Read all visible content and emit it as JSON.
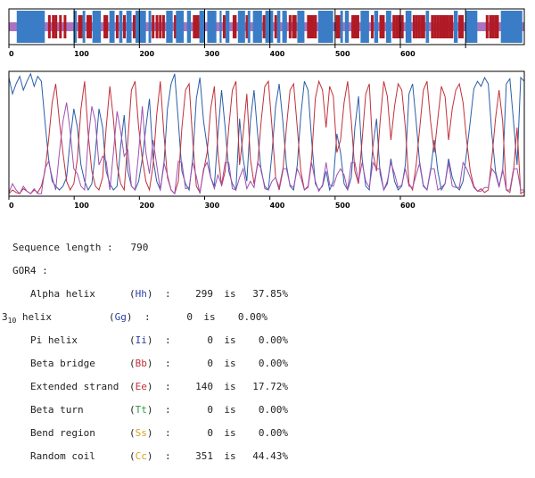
{
  "chart_data": [
    {
      "type": "bar",
      "title": "",
      "x_ticks": [
        0,
        100,
        200,
        300,
        400,
        500,
        600
      ],
      "xlim": [
        0,
        790
      ],
      "colors": {
        "helix": "#3a7dc6",
        "strand": "#b01a24",
        "coil": "#9b59b6",
        "turn": "#2e9a3a"
      },
      "helix_segments": [
        [
          12,
          55
        ],
        [
          99,
          104
        ],
        [
          113,
          117
        ],
        [
          128,
          141
        ],
        [
          154,
          162
        ],
        [
          169,
          174
        ],
        [
          180,
          188
        ],
        [
          194,
          210
        ],
        [
          214,
          218
        ],
        [
          241,
          251
        ],
        [
          256,
          268
        ],
        [
          273,
          279
        ],
        [
          292,
          300
        ],
        [
          304,
          318
        ],
        [
          323,
          326
        ],
        [
          332,
          338
        ],
        [
          351,
          362
        ],
        [
          366,
          370
        ],
        [
          374,
          388
        ],
        [
          393,
          405
        ],
        [
          411,
          416
        ],
        [
          419,
          426
        ],
        [
          442,
          453
        ],
        [
          474,
          497
        ],
        [
          508,
          512
        ],
        [
          515,
          521
        ],
        [
          539,
          552
        ],
        [
          560,
          566
        ],
        [
          578,
          586
        ],
        [
          608,
          617
        ],
        [
          639,
          644
        ],
        [
          682,
          688
        ],
        [
          700,
          718
        ],
        [
          754,
          787
        ]
      ],
      "strand_positions": [
        32,
        62,
        68,
        72,
        79,
        86,
        108,
        111,
        121,
        125,
        147,
        150,
        166,
        177,
        192,
        221,
        227,
        232,
        237,
        255,
        284,
        287,
        290,
        330,
        345,
        347,
        365,
        391,
        409,
        424,
        431,
        436,
        439,
        459,
        462,
        466,
        470,
        503,
        506,
        527,
        531,
        535,
        557,
        570,
        574,
        590,
        594,
        598,
        603,
        621,
        625,
        629,
        633,
        636,
        649,
        653,
        657,
        661,
        665,
        669,
        673,
        677,
        679,
        691,
        695,
        733,
        738,
        742,
        746,
        749
      ]
    },
    {
      "type": "line",
      "title": "",
      "x_ticks": [
        0,
        100,
        200,
        300,
        400,
        500,
        600
      ],
      "xlim": [
        0,
        790
      ],
      "ylim": [
        0,
        1
      ],
      "colors": {
        "helix": "#2a5ea8",
        "strand": "#c0303a",
        "coil": "#a050b0"
      },
      "series": [
        {
          "key": "helix",
          "values": [
            0.95,
            0.82,
            0.9,
            0.96,
            0.85,
            0.92,
            0.98,
            0.88,
            0.96,
            0.92,
            0.6,
            0.3,
            0.12,
            0.08,
            0.05,
            0.08,
            0.15,
            0.45,
            0.7,
            0.55,
            0.25,
            0.12,
            0.05,
            0.1,
            0.35,
            0.7,
            0.55,
            0.2,
            0.1,
            0.05,
            0.08,
            0.4,
            0.65,
            0.2,
            0.08,
            0.05,
            0.12,
            0.3,
            0.55,
            0.78,
            0.3,
            0.12,
            0.05,
            0.25,
            0.7,
            0.9,
            0.98,
            0.6,
            0.2,
            0.1,
            0.05,
            0.3,
            0.78,
            0.95,
            0.6,
            0.4,
            0.15,
            0.08,
            0.5,
            0.85,
            0.55,
            0.2,
            0.1,
            0.05,
            0.62,
            0.3,
            0.12,
            0.6,
            0.85,
            0.5,
            0.2,
            0.08,
            0.05,
            0.35,
            0.72,
            0.9,
            0.6,
            0.25,
            0.08,
            0.05,
            0.25,
            0.65,
            0.92,
            0.85,
            0.45,
            0.1,
            0.05,
            0.08,
            0.2,
            0.05,
            0.12,
            0.5,
            0.35,
            0.1,
            0.05,
            0.15,
            0.55,
            0.8,
            0.3,
            0.08,
            0.05,
            0.4,
            0.62,
            0.18,
            0.05,
            0.1,
            0.3,
            0.12,
            0.05,
            0.08,
            0.25,
            0.82,
            0.9,
            0.6,
            0.25,
            0.08,
            0.05,
            0.2,
            0.45,
            0.2,
            0.05,
            0.1,
            0.3,
            0.15,
            0.08,
            0.05,
            0.12,
            0.35,
            0.6,
            0.86,
            0.92,
            0.88,
            0.95,
            0.9,
            0.5,
            0.2,
            0.08,
            0.2,
            0.9,
            0.94,
            0.6,
            0.25,
            0.95,
            0.92
          ]
        },
        {
          "key": "strand",
          "values": [
            0.02,
            0.05,
            0.03,
            0.02,
            0.06,
            0.04,
            0.02,
            0.05,
            0.03,
            0.08,
            0.2,
            0.45,
            0.75,
            0.9,
            0.6,
            0.35,
            0.12,
            0.05,
            0.1,
            0.3,
            0.7,
            0.92,
            0.5,
            0.2,
            0.08,
            0.05,
            0.15,
            0.55,
            0.88,
            0.62,
            0.25,
            0.1,
            0.05,
            0.45,
            0.85,
            0.92,
            0.55,
            0.3,
            0.12,
            0.05,
            0.25,
            0.65,
            0.92,
            0.5,
            0.15,
            0.05,
            0.02,
            0.12,
            0.55,
            0.85,
            0.9,
            0.45,
            0.08,
            0.03,
            0.2,
            0.35,
            0.7,
            0.88,
            0.35,
            0.08,
            0.2,
            0.55,
            0.85,
            0.92,
            0.25,
            0.5,
            0.82,
            0.3,
            0.1,
            0.25,
            0.6,
            0.88,
            0.92,
            0.55,
            0.15,
            0.05,
            0.2,
            0.55,
            0.85,
            0.9,
            0.55,
            0.2,
            0.05,
            0.08,
            0.3,
            0.78,
            0.92,
            0.85,
            0.55,
            0.88,
            0.8,
            0.35,
            0.45,
            0.75,
            0.92,
            0.6,
            0.2,
            0.1,
            0.45,
            0.82,
            0.9,
            0.35,
            0.2,
            0.6,
            0.92,
            0.8,
            0.45,
            0.72,
            0.9,
            0.85,
            0.55,
            0.1,
            0.05,
            0.25,
            0.55,
            0.85,
            0.92,
            0.6,
            0.35,
            0.62,
            0.88,
            0.8,
            0.45,
            0.7,
            0.85,
            0.9,
            0.75,
            0.45,
            0.2,
            0.08,
            0.04,
            0.06,
            0.03,
            0.05,
            0.3,
            0.62,
            0.85,
            0.6,
            0.05,
            0.03,
            0.2,
            0.55,
            0.02,
            0.04
          ]
        },
        {
          "key": "coil",
          "values": [
            0.03,
            0.1,
            0.05,
            0.02,
            0.08,
            0.04,
            0.02,
            0.06,
            0.02,
            0.02,
            0.22,
            0.28,
            0.15,
            0.05,
            0.35,
            0.6,
            0.75,
            0.52,
            0.22,
            0.18,
            0.08,
            0.05,
            0.45,
            0.72,
            0.6,
            0.25,
            0.32,
            0.28,
            0.05,
            0.35,
            0.68,
            0.52,
            0.32,
            0.37,
            0.08,
            0.05,
            0.35,
            0.72,
            0.35,
            0.18,
            0.45,
            0.25,
            0.05,
            0.27,
            0.17,
            0.05,
            0.02,
            0.28,
            0.27,
            0.06,
            0.07,
            0.27,
            0.16,
            0.02,
            0.22,
            0.27,
            0.15,
            0.06,
            0.17,
            0.09,
            0.27,
            0.27,
            0.06,
            0.05,
            0.15,
            0.22,
            0.06,
            0.12,
            0.07,
            0.27,
            0.22,
            0.06,
            0.05,
            0.12,
            0.15,
            0.07,
            0.22,
            0.22,
            0.09,
            0.07,
            0.22,
            0.15,
            0.05,
            0.07,
            0.27,
            0.12,
            0.04,
            0.09,
            0.27,
            0.09,
            0.08,
            0.17,
            0.22,
            0.17,
            0.05,
            0.27,
            0.27,
            0.12,
            0.27,
            0.12,
            0.07,
            0.27,
            0.22,
            0.22,
            0.05,
            0.12,
            0.27,
            0.18,
            0.07,
            0.09,
            0.22,
            0.08,
            0.07,
            0.17,
            0.27,
            0.09,
            0.05,
            0.22,
            0.22,
            0.05,
            0.07,
            0.1,
            0.27,
            0.08,
            0.07,
            0.07,
            0.27,
            0.22,
            0.15,
            0.07,
            0.04,
            0.04,
            0.07,
            0.07,
            0.22,
            0.18,
            0.07,
            0.22,
            0.05,
            0.05,
            0.22,
            0.22,
            0.05,
            0.05
          ]
        }
      ]
    }
  ],
  "stats": {
    "seq_length_label": "Sequence length :",
    "seq_length_value": "790",
    "method": "GOR4 :",
    "rows": [
      {
        "name": "Alpha helix",
        "code": "Hh",
        "count": "299",
        "is": "is",
        "pct": "37.85%",
        "color": "#2b3fa8"
      },
      {
        "name_base": "3",
        "name_sub": "10",
        "name_rest": " helix",
        "code": "Gg",
        "count": "0",
        "is": "is",
        "pct": "0.00%",
        "color": "#2b3fa8"
      },
      {
        "name": "Pi helix",
        "code": "Ii",
        "count": "0",
        "is": "is",
        "pct": "0.00%",
        "color": "#2b3fa8"
      },
      {
        "name": "Beta bridge",
        "code": "Bb",
        "count": "0",
        "is": "is",
        "pct": "0.00%",
        "color": "#c0303a"
      },
      {
        "name": "Extended strand",
        "code": "Ee",
        "count": "140",
        "is": "is",
        "pct": "17.72%",
        "color": "#c0303a"
      },
      {
        "name": "Beta turn",
        "code": "Tt",
        "count": "0",
        "is": "is",
        "pct": "0.00%",
        "color": "#2e9a3a"
      },
      {
        "name": "Bend region",
        "code": "Ss",
        "count": "0",
        "is": "is",
        "pct": "0.00%",
        "color": "#d8a020"
      },
      {
        "name": "Random coil",
        "code": "Cc",
        "count": "351",
        "is": "is",
        "pct": "44.43%",
        "color": "#d8a020"
      }
    ]
  }
}
